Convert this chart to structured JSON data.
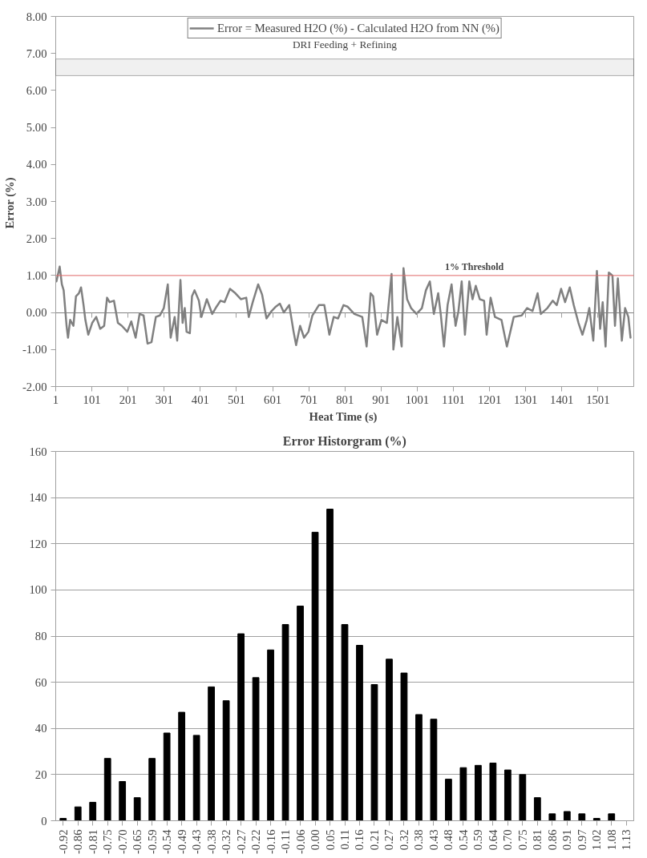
{
  "chart_data": [
    {
      "type": "line",
      "xlabel": "Heat Time  (s)",
      "ylabel": "Error  (%)",
      "legend": "top",
      "grid": false,
      "series": [
        {
          "name": "Error = Measured H2O (%) - Calculated H2O from NN (%)",
          "color": "#808080",
          "x": [
            3,
            12,
            18,
            23,
            31,
            35,
            41,
            50,
            57,
            65,
            71,
            78,
            83,
            91,
            102,
            113,
            124,
            135,
            143,
            150,
            162,
            173,
            184,
            199,
            210,
            222,
            233,
            244,
            255,
            266,
            278,
            289,
            300,
            311,
            319,
            330,
            337,
            346,
            352,
            358,
            363,
            372,
            378,
            385,
            397,
            404,
            419,
            434,
            446,
            457,
            468,
            483,
            498,
            513,
            528,
            535,
            546,
            561,
            572,
            584,
            598,
            610,
            621,
            632,
            647,
            659,
            666,
            677,
            688,
            700,
            711,
            729,
            744,
            758,
            770,
            782,
            797,
            808,
            827,
            849,
            861,
            872,
            879,
            890,
            902,
            917,
            930,
            935,
            946,
            958,
            963,
            973,
            984,
            999,
            1014,
            1025,
            1036,
            1047,
            1059,
            1066,
            1075,
            1085,
            1096,
            1107,
            1115,
            1124,
            1133,
            1145,
            1154,
            1163,
            1174,
            1186,
            1193,
            1204,
            1216,
            1234,
            1249,
            1268,
            1290,
            1305,
            1320,
            1334,
            1343,
            1361,
            1376,
            1387,
            1399,
            1410,
            1423,
            1434,
            1447,
            1458,
            1470,
            1477,
            1488,
            1498,
            1507,
            1514,
            1522,
            1531,
            1541,
            1548,
            1556,
            1567,
            1576,
            1585,
            1591
          ],
          "values": [
            0.84,
            1.24,
            0.76,
            0.6,
            -0.36,
            -0.68,
            -0.2,
            -0.36,
            0.44,
            0.52,
            0.68,
            0.2,
            -0.2,
            -0.6,
            -0.28,
            -0.12,
            -0.44,
            -0.36,
            0.4,
            0.28,
            0.32,
            -0.28,
            -0.36,
            -0.52,
            -0.24,
            -0.68,
            -0.04,
            -0.08,
            -0.84,
            -0.8,
            -0.12,
            -0.08,
            0.12,
            0.76,
            -0.68,
            -0.12,
            -0.76,
            0.88,
            -0.28,
            0.12,
            -0.52,
            -0.56,
            0.44,
            0.6,
            0.32,
            -0.12,
            0.36,
            -0.04,
            0.16,
            0.32,
            0.28,
            0.64,
            0.52,
            0.36,
            0.4,
            -0.12,
            0.28,
            0.76,
            0.48,
            -0.16,
            0.04,
            0.16,
            0.24,
            0,
            0.2,
            -0.52,
            -0.88,
            -0.36,
            -0.68,
            -0.52,
            -0.08,
            0.2,
            0.2,
            -0.6,
            -0.12,
            -0.16,
            0.2,
            0.16,
            -0.04,
            -0.12,
            -0.92,
            0.52,
            0.44,
            -0.6,
            -0.2,
            -0.28,
            1.04,
            -1.0,
            -0.12,
            -0.92,
            1.2,
            0.36,
            0.12,
            -0.04,
            0.12,
            0.6,
            0.84,
            -0.04,
            0.52,
            -0.04,
            -0.92,
            0.2,
            0.76,
            -0.36,
            0.04,
            0.84,
            -0.6,
            0.84,
            0.36,
            0.72,
            0.36,
            0.32,
            -0.6,
            0.4,
            -0.12,
            -0.2,
            -0.92,
            -0.12,
            -0.08,
            0.12,
            0.04,
            0.52,
            -0.04,
            0.12,
            0.32,
            0.2,
            0.64,
            0.28,
            0.68,
            0.2,
            -0.28,
            -0.6,
            -0.2,
            0.12,
            -0.76,
            1.12,
            -0.44,
            0.28,
            -0.92,
            1.08,
            1.0,
            -0.36,
            0.92,
            -0.76,
            0.12,
            -0.12,
            -0.68
          ]
        }
      ],
      "xlim": [
        1,
        1600
      ],
      "xticks": [
        1,
        101,
        201,
        301,
        401,
        501,
        601,
        701,
        801,
        901,
        1001,
        1101,
        1201,
        1301,
        1401,
        1501
      ],
      "ylim": [
        -2,
        8
      ],
      "yticks": [
        {
          "value": -2,
          "label": "-2.00"
        },
        {
          "value": -1,
          "label": "-1.00"
        },
        {
          "value": 0,
          "label": "0.00"
        },
        {
          "value": 1,
          "label": "1.00"
        },
        {
          "value": 2,
          "label": "2.00"
        },
        {
          "value": 3,
          "label": "3.00"
        },
        {
          "value": 4,
          "label": "4.00"
        },
        {
          "value": 5,
          "label": "5.00"
        },
        {
          "value": 6,
          "label": "6.00"
        },
        {
          "value": 7,
          "label": "7.00"
        },
        {
          "value": 8,
          "label": "8.00"
        }
      ],
      "ref_lines": [
        {
          "axis": "y",
          "value": 1,
          "label": "1% Threshold",
          "color": "#e06666"
        }
      ],
      "bands": [
        {
          "axis": "x",
          "from": 1,
          "to": 1600,
          "label": "DRI Feeding + Refining",
          "color": "#000000"
        }
      ]
    },
    {
      "type": "bar",
      "title": "Error Historgram (%)",
      "grid": "y",
      "categories": [
        "-0.92",
        "-0.86",
        "-0.81",
        "-0.75",
        "-0.70",
        "-0.65",
        "-0.59",
        "-0.54",
        "-0.49",
        "-0.43",
        "-0.38",
        "-0.32",
        "-0.27",
        "-0.22",
        "-0.16",
        "-0.11",
        "-0.06",
        "0.00",
        "0.05",
        "0.11",
        "0.16",
        "0.21",
        "0.27",
        "0.32",
        "0.38",
        "0.43",
        "0.48",
        "0.54",
        "0.59",
        "0.64",
        "0.70",
        "0.75",
        "0.81",
        "0.86",
        "0.91",
        "0.97",
        "1.02",
        "1.08",
        "1.13"
      ],
      "values": [
        1,
        6,
        8,
        27,
        17,
        10,
        27,
        38,
        47,
        37,
        58,
        52,
        81,
        62,
        74,
        85,
        93,
        125,
        135,
        85,
        76,
        59,
        70,
        64,
        46,
        44,
        18,
        23,
        24,
        25,
        22,
        20,
        10,
        3,
        4,
        3,
        1,
        3,
        0
      ],
      "color": "#000000",
      "ylim": [
        0,
        160
      ],
      "yticks": [
        0,
        20,
        40,
        60,
        80,
        100,
        120,
        140,
        160
      ]
    }
  ]
}
